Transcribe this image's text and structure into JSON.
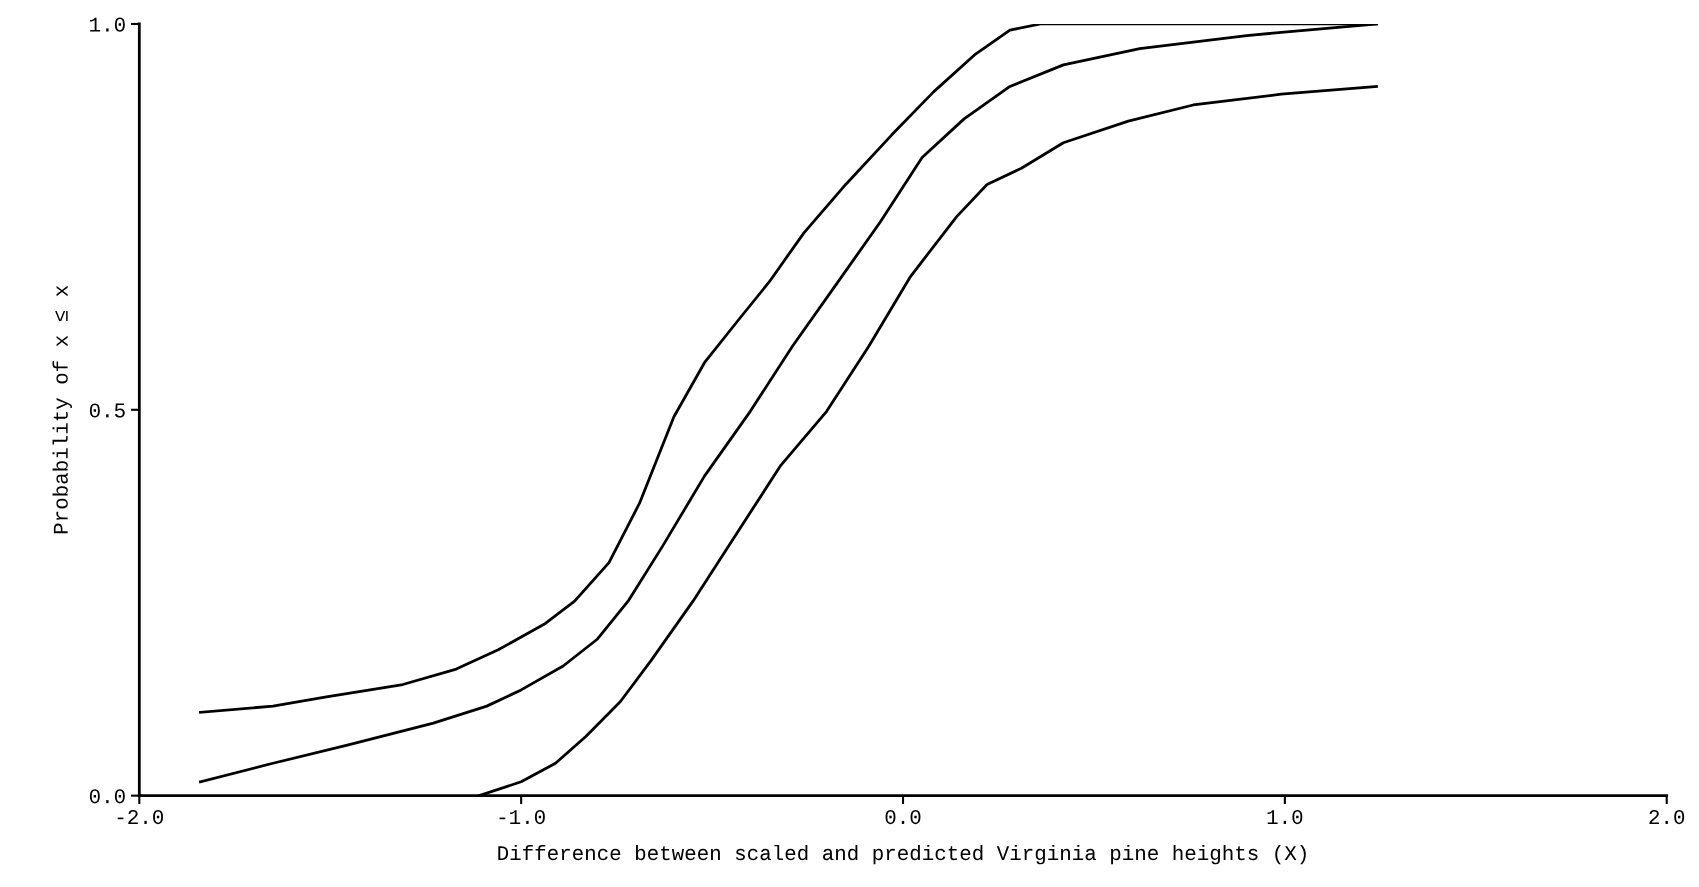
{
  "chart_data": {
    "type": "line",
    "xlabel": "Difference between scaled and predicted Virginia pine heights (X)",
    "ylabel": "Probability of x ≤ x",
    "xlim": [
      -2.0,
      2.0
    ],
    "ylim": [
      0.0,
      1.0
    ],
    "xticks": [
      {
        "value": -2.0,
        "label": "-2.0"
      },
      {
        "value": -1.0,
        "label": "-1.0"
      },
      {
        "value": 0.0,
        "label": "0.0"
      },
      {
        "value": 1.0,
        "label": "1.0"
      },
      {
        "value": 2.0,
        "label": "2.0"
      }
    ],
    "yticks": [
      {
        "value": 0.0,
        "label": "0.0"
      },
      {
        "value": 0.5,
        "label": "0.5"
      },
      {
        "value": 1.0,
        "label": "1.0"
      }
    ],
    "grid": false,
    "legend": false,
    "series": [
      {
        "color": "#000000",
        "x": [
          -1.84,
          -1.65,
          -1.51,
          -1.31,
          -1.17,
          -1.06,
          -0.94,
          -0.86,
          -0.77,
          -0.69,
          -0.6,
          -0.52,
          -0.43,
          -0.35,
          -0.26,
          -0.15,
          -0.03,
          0.08,
          0.19,
          0.28,
          0.36,
          0.76,
          1.24
        ],
        "values": [
          0.108,
          0.116,
          0.128,
          0.144,
          0.164,
          0.189,
          0.222,
          0.252,
          0.302,
          0.379,
          0.491,
          0.561,
          0.617,
          0.666,
          0.729,
          0.792,
          0.856,
          0.912,
          0.961,
          0.992,
          1.0,
          1.0,
          1.0
        ]
      },
      {
        "color": "#000000",
        "x": [
          -1.84,
          -1.65,
          -1.45,
          -1.23,
          -1.09,
          -1.0,
          -0.89,
          -0.8,
          -0.72,
          -0.63,
          -0.52,
          -0.4,
          -0.29,
          -0.18,
          -0.06,
          0.05,
          0.16,
          0.28,
          0.42,
          0.62,
          0.9,
          1.24
        ],
        "values": [
          0.018,
          0.042,
          0.066,
          0.094,
          0.116,
          0.137,
          0.168,
          0.203,
          0.252,
          0.323,
          0.414,
          0.498,
          0.582,
          0.659,
          0.743,
          0.827,
          0.877,
          0.919,
          0.947,
          0.968,
          0.985,
          1.0
        ]
      },
      {
        "color": "#000000",
        "x": [
          -1.11,
          -1.0,
          -0.91,
          -0.83,
          -0.74,
          -0.66,
          -0.55,
          -0.43,
          -0.32,
          -0.2,
          -0.09,
          0.02,
          0.14,
          0.22,
          0.31,
          0.42,
          0.59,
          0.76,
          0.99,
          1.24
        ],
        "values": [
          0.0,
          0.018,
          0.042,
          0.077,
          0.122,
          0.175,
          0.252,
          0.344,
          0.428,
          0.498,
          0.582,
          0.673,
          0.75,
          0.792,
          0.813,
          0.846,
          0.874,
          0.895,
          0.909,
          0.919
        ]
      }
    ]
  }
}
